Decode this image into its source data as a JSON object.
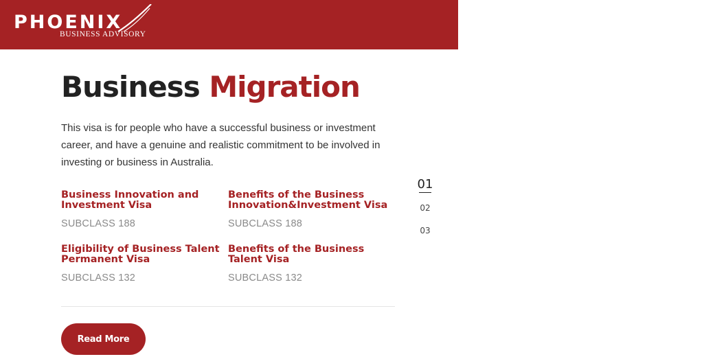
{
  "header": {
    "logo_main": "PHOENIX",
    "logo_sub": "BUSINESS ADVISORY",
    "brand_color": "#a52224"
  },
  "hero": {
    "title_part1": "Business",
    "title_part2": "Migration",
    "description": "This visa is for people who have a successful business or investment career, and have a genuine and realistic commitment to be involved in investing or business in Australia."
  },
  "items": [
    {
      "title": "Business Innovation and Investment Visa",
      "subclass": "SUBCLASS 188"
    },
    {
      "title": "Benefits of the Business Innovation&Investment Visa",
      "subclass": "SUBCLASS 188"
    },
    {
      "title": "Eligibility of Business Talent Permanent Visa",
      "subclass": "SUBCLASS 132"
    },
    {
      "title": "Benefits of the Business Talent Visa",
      "subclass": "SUBCLASS 132"
    }
  ],
  "cta": {
    "label": "Read More"
  },
  "pager": {
    "pages": [
      "01",
      "02",
      "03"
    ],
    "active": "01"
  }
}
